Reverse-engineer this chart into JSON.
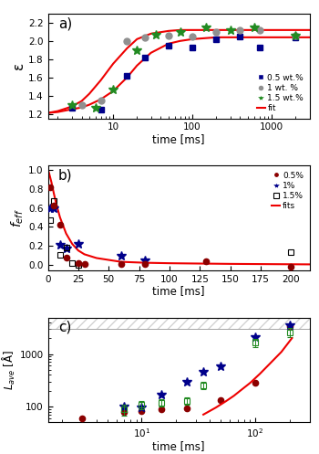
{
  "panel_a": {
    "label": "a)",
    "xlabel": "time [ms]",
    "ylabel": "ε",
    "xlim": [
      1.5,
      3000
    ],
    "ylim": [
      1.15,
      2.3
    ],
    "yticks": [
      1.2,
      1.4,
      1.6,
      1.8,
      2.0,
      2.2
    ],
    "data_05": [
      [
        3,
        1.27
      ],
      [
        7,
        1.25
      ],
      [
        15,
        1.62
      ],
      [
        25,
        1.82
      ],
      [
        50,
        1.95
      ],
      [
        100,
        1.93
      ],
      [
        200,
        2.02
      ],
      [
        400,
        2.05
      ],
      [
        700,
        1.93
      ],
      [
        2000,
        2.04
      ]
    ],
    "data_1": [
      [
        4,
        1.3
      ],
      [
        7,
        1.35
      ],
      [
        15,
        2.0
      ],
      [
        25,
        2.04
      ],
      [
        50,
        2.06
      ],
      [
        100,
        2.05
      ],
      [
        200,
        2.1
      ],
      [
        400,
        2.12
      ],
      [
        700,
        2.12
      ],
      [
        2000,
        2.06
      ]
    ],
    "data_15": [
      [
        3,
        1.3
      ],
      [
        6,
        1.27
      ],
      [
        10,
        1.47
      ],
      [
        20,
        1.9
      ],
      [
        35,
        2.07
      ],
      [
        70,
        2.1
      ],
      [
        150,
        2.15
      ],
      [
        300,
        2.12
      ],
      [
        600,
        2.15
      ],
      [
        2000,
        2.06
      ]
    ],
    "fit1_x": [
      1.5,
      2,
      3,
      4,
      5,
      7,
      10,
      15,
      20,
      30,
      50,
      70,
      100,
      200,
      300,
      500,
      1000,
      2000,
      3000
    ],
    "fit1_y": [
      1.21,
      1.22,
      1.25,
      1.27,
      1.3,
      1.36,
      1.45,
      1.6,
      1.73,
      1.87,
      1.97,
      2.0,
      2.02,
      2.04,
      2.04,
      2.04,
      2.04,
      2.04,
      2.04
    ],
    "fit2_x": [
      1.5,
      2,
      3,
      4,
      5,
      7,
      10,
      15,
      20,
      30,
      50,
      70,
      100,
      200,
      300,
      500,
      1000,
      2000,
      3000
    ],
    "fit2_y": [
      1.21,
      1.23,
      1.28,
      1.34,
      1.42,
      1.57,
      1.75,
      1.92,
      2.02,
      2.08,
      2.11,
      2.12,
      2.12,
      2.12,
      2.12,
      2.12,
      2.12,
      2.12,
      2.12
    ],
    "color_05": "#00008B",
    "color_1": "#909090",
    "color_15": "#228B22",
    "color_fit": "#EE0000",
    "legend_labels": [
      "0.5 wt.%",
      "1 wt. %",
      "1.5 wt.%",
      "fit"
    ]
  },
  "panel_b": {
    "label": "b)",
    "xlabel": "time [ms]",
    "ylabel": "f_{eff}",
    "xlim": [
      0,
      215
    ],
    "ylim": [
      -0.06,
      1.05
    ],
    "yticks": [
      0.0,
      0.2,
      0.4,
      0.6,
      0.8,
      1.0
    ],
    "data_05_red": [
      [
        2,
        0.82
      ],
      [
        5,
        0.63
      ],
      [
        10,
        0.42
      ],
      [
        15,
        0.07
      ],
      [
        25,
        0.02
      ],
      [
        30,
        0.01
      ],
      [
        60,
        0.01
      ],
      [
        80,
        0.01
      ],
      [
        130,
        0.04
      ],
      [
        200,
        -0.02
      ]
    ],
    "data_1_blue": [
      [
        2,
        0.6
      ],
      [
        5,
        0.6
      ],
      [
        10,
        0.21
      ],
      [
        15,
        0.17
      ],
      [
        25,
        0.22
      ],
      [
        60,
        0.09
      ],
      [
        80,
        0.05
      ]
    ],
    "data_15_sq": [
      [
        2,
        0.47
      ],
      [
        5,
        0.67
      ],
      [
        10,
        0.1
      ],
      [
        15,
        0.18
      ],
      [
        20,
        0.02
      ],
      [
        25,
        0.0
      ],
      [
        200,
        0.13
      ]
    ],
    "fit_x": [
      0.1,
      0.5,
      1,
      2,
      3,
      5,
      7,
      10,
      15,
      20,
      25,
      30,
      40,
      50,
      60,
      80,
      100,
      150,
      200,
      215
    ],
    "fit_y": [
      1.0,
      0.99,
      0.97,
      0.92,
      0.87,
      0.75,
      0.64,
      0.5,
      0.33,
      0.22,
      0.15,
      0.11,
      0.07,
      0.05,
      0.03,
      0.02,
      0.015,
      0.008,
      0.004,
      0.003
    ],
    "color_05": "#8B0000",
    "color_1": "#00008B",
    "color_15": "#333333",
    "color_fit": "#EE0000",
    "legend_labels": [
      "0.5%",
      "1%",
      "1.5%",
      "fits"
    ]
  },
  "panel_c": {
    "label": "c)",
    "xlabel": "time [ms]",
    "ylabel": "L_{ave} [Å]",
    "xlim": [
      1.5,
      300
    ],
    "ylim": [
      50,
      5000
    ],
    "yticks": [
      100,
      1000
    ],
    "yticklabels": [
      "100",
      "1000"
    ],
    "data_05_red": [
      [
        3,
        60
      ],
      [
        7,
        80
      ],
      [
        10,
        83
      ],
      [
        15,
        88
      ],
      [
        25,
        92
      ],
      [
        50,
        130
      ],
      [
        100,
        280
      ],
      [
        200,
        3400
      ]
    ],
    "data_1_blue": [
      [
        7,
        100
      ],
      [
        10,
        95
      ],
      [
        15,
        165
      ],
      [
        25,
        290
      ],
      [
        35,
        460
      ],
      [
        50,
        580
      ],
      [
        100,
        2100
      ],
      [
        200,
        3500
      ]
    ],
    "data_15_sq": [
      [
        7,
        88
      ],
      [
        10,
        108
      ],
      [
        15,
        118
      ],
      [
        25,
        128
      ],
      [
        35,
        255
      ],
      [
        100,
        1650
      ],
      [
        200,
        2600
      ]
    ],
    "data_15_sq_err": [
      20,
      20,
      20,
      20,
      40,
      300,
      500
    ],
    "fit_x": [
      35,
      45,
      55,
      65,
      75,
      90,
      110,
      135,
      170,
      210
    ],
    "fit_y": [
      70,
      95,
      125,
      160,
      205,
      280,
      420,
      660,
      1100,
      2000
    ],
    "hatch_ymin": 3000,
    "hatch_ymax": 5000,
    "color_05": "#8B0000",
    "color_1": "#00008B",
    "color_15": "#228B22",
    "color_fit": "#EE0000"
  }
}
